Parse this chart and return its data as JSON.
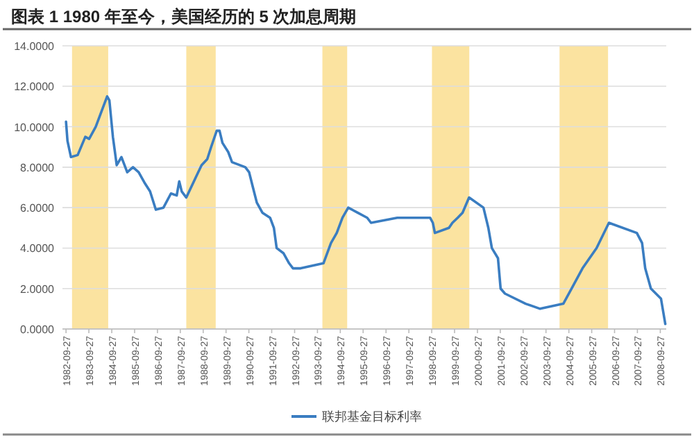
{
  "chart_data": {
    "type": "line",
    "title": "图表 1 1980 年至今，美国经历的 5 次加息周期",
    "x": [
      "1982-09-27",
      "1982-10-20",
      "1982-12-15",
      "1983-04-01",
      "1983-08-01",
      "1983-10-01",
      "1984-01-15",
      "1984-07-15",
      "1984-08-20",
      "1984-10-15",
      "1984-12-15",
      "1985-03-01",
      "1985-06-01",
      "1985-09-01",
      "1985-12-01",
      "1986-03-01",
      "1986-06-01",
      "1986-09-01",
      "1987-01-01",
      "1987-05-01",
      "1987-08-01",
      "1987-09-10",
      "1987-10-20",
      "1988-01-01",
      "1988-06-01",
      "1988-09-01",
      "1988-12-01",
      "1989-02-01",
      "1989-05-01",
      "1989-06-15",
      "1989-08-01",
      "1989-11-01",
      "1990-01-01",
      "1990-08-01",
      "1990-10-01",
      "1990-12-01",
      "1991-02-01",
      "1991-05-01",
      "1991-09-01",
      "1991-11-01",
      "1991-12-15",
      "1992-04-01",
      "1992-07-01",
      "1992-09-01",
      "1993-01-01",
      "1994-01-01",
      "1994-05-01",
      "1994-08-01",
      "1994-11-01",
      "1995-02-01",
      "1995-07-01",
      "1995-12-01",
      "1996-01-31",
      "1997-03-25",
      "1998-09-01",
      "1998-10-15",
      "1998-11-17",
      "1999-06-30",
      "1999-08-24",
      "1999-11-16",
      "2000-02-02",
      "2000-05-16",
      "2001-01-01",
      "2001-03-20",
      "2001-05-15",
      "2001-08-21",
      "2001-10-02",
      "2001-12-11",
      "2002-11-06",
      "2003-06-25",
      "2004-06-30",
      "2004-11-10",
      "2005-05-03",
      "2005-12-13",
      "2006-06-29",
      "2007-09-18",
      "2007-12-11",
      "2008-01-30",
      "2008-04-30",
      "2008-10-08",
      "2008-12-16"
    ],
    "series": [
      {
        "name": "联邦基金目标利率",
        "color": "#3a7dc1",
        "values": [
          10.25,
          9.3,
          8.5,
          8.6,
          9.5,
          9.4,
          10.0,
          11.5,
          11.3,
          9.5,
          8.1,
          8.5,
          7.75,
          8.0,
          7.75,
          7.25,
          6.8,
          5.9,
          6.0,
          6.7,
          6.6,
          7.3,
          6.8,
          6.5,
          7.5,
          8.1,
          8.4,
          9.0,
          9.8,
          9.8,
          9.2,
          8.75,
          8.25,
          8.0,
          7.75,
          7.0,
          6.25,
          5.75,
          5.5,
          5.0,
          4.0,
          3.75,
          3.25,
          3.0,
          3.0,
          3.25,
          4.25,
          4.75,
          5.5,
          6.0,
          5.75,
          5.5,
          5.25,
          5.5,
          5.5,
          5.25,
          4.75,
          5.0,
          5.25,
          5.5,
          5.75,
          6.5,
          6.0,
          5.0,
          4.0,
          3.5,
          2.0,
          1.75,
          1.25,
          1.0,
          1.25,
          2.0,
          3.0,
          4.0,
          5.25,
          4.75,
          4.25,
          3.0,
          2.0,
          1.5,
          0.25
        ]
      }
    ],
    "xlim": [
      "1982-08-01",
      "2008-12-31"
    ],
    "xticks": [
      "1982-09-27",
      "1983-09-27",
      "1984-09-27",
      "1985-09-27",
      "1986-09-27",
      "1987-09-27",
      "1988-09-27",
      "1989-09-27",
      "1990-09-27",
      "1991-09-27",
      "1992-09-27",
      "1993-09-27",
      "1994-09-27",
      "1995-09-27",
      "1996-09-27",
      "1997-09-27",
      "1998-09-27",
      "1999-09-27",
      "2000-09-27",
      "2001-09-27",
      "2002-09-27",
      "2003-09-27",
      "2004-09-27",
      "2005-09-27",
      "2006-09-27",
      "2007-09-27",
      "2008-09-27"
    ],
    "ylim": [
      0,
      14
    ],
    "yticks": [
      {
        "value": 0,
        "label": "0.0000"
      },
      {
        "value": 2,
        "label": "2.0000"
      },
      {
        "value": 4,
        "label": "4.0000"
      },
      {
        "value": 6,
        "label": "6.0000"
      },
      {
        "value": 8,
        "label": "8.0000"
      },
      {
        "value": 10,
        "label": "10.0000"
      },
      {
        "value": 12,
        "label": "12.0000"
      },
      {
        "value": 14,
        "label": "14.0000"
      }
    ],
    "bands": [
      {
        "axis": "x",
        "from": "1983-01-01",
        "to": "1984-08-01",
        "color": "#fbe3a0"
      },
      {
        "axis": "x",
        "from": "1988-01-01",
        "to": "1989-04-15",
        "color": "#fbe3a0"
      },
      {
        "axis": "x",
        "from": "1993-12-15",
        "to": "1995-01-15",
        "color": "#fbe3a0"
      },
      {
        "axis": "x",
        "from": "1998-10-01",
        "to": "2000-05-20",
        "color": "#fbe3a0"
      },
      {
        "axis": "x",
        "from": "2004-05-01",
        "to": "2006-06-15",
        "color": "#fbe3a0"
      }
    ],
    "grid": "y",
    "legend": "bottom",
    "line_style": "solid",
    "marker": "none"
  }
}
